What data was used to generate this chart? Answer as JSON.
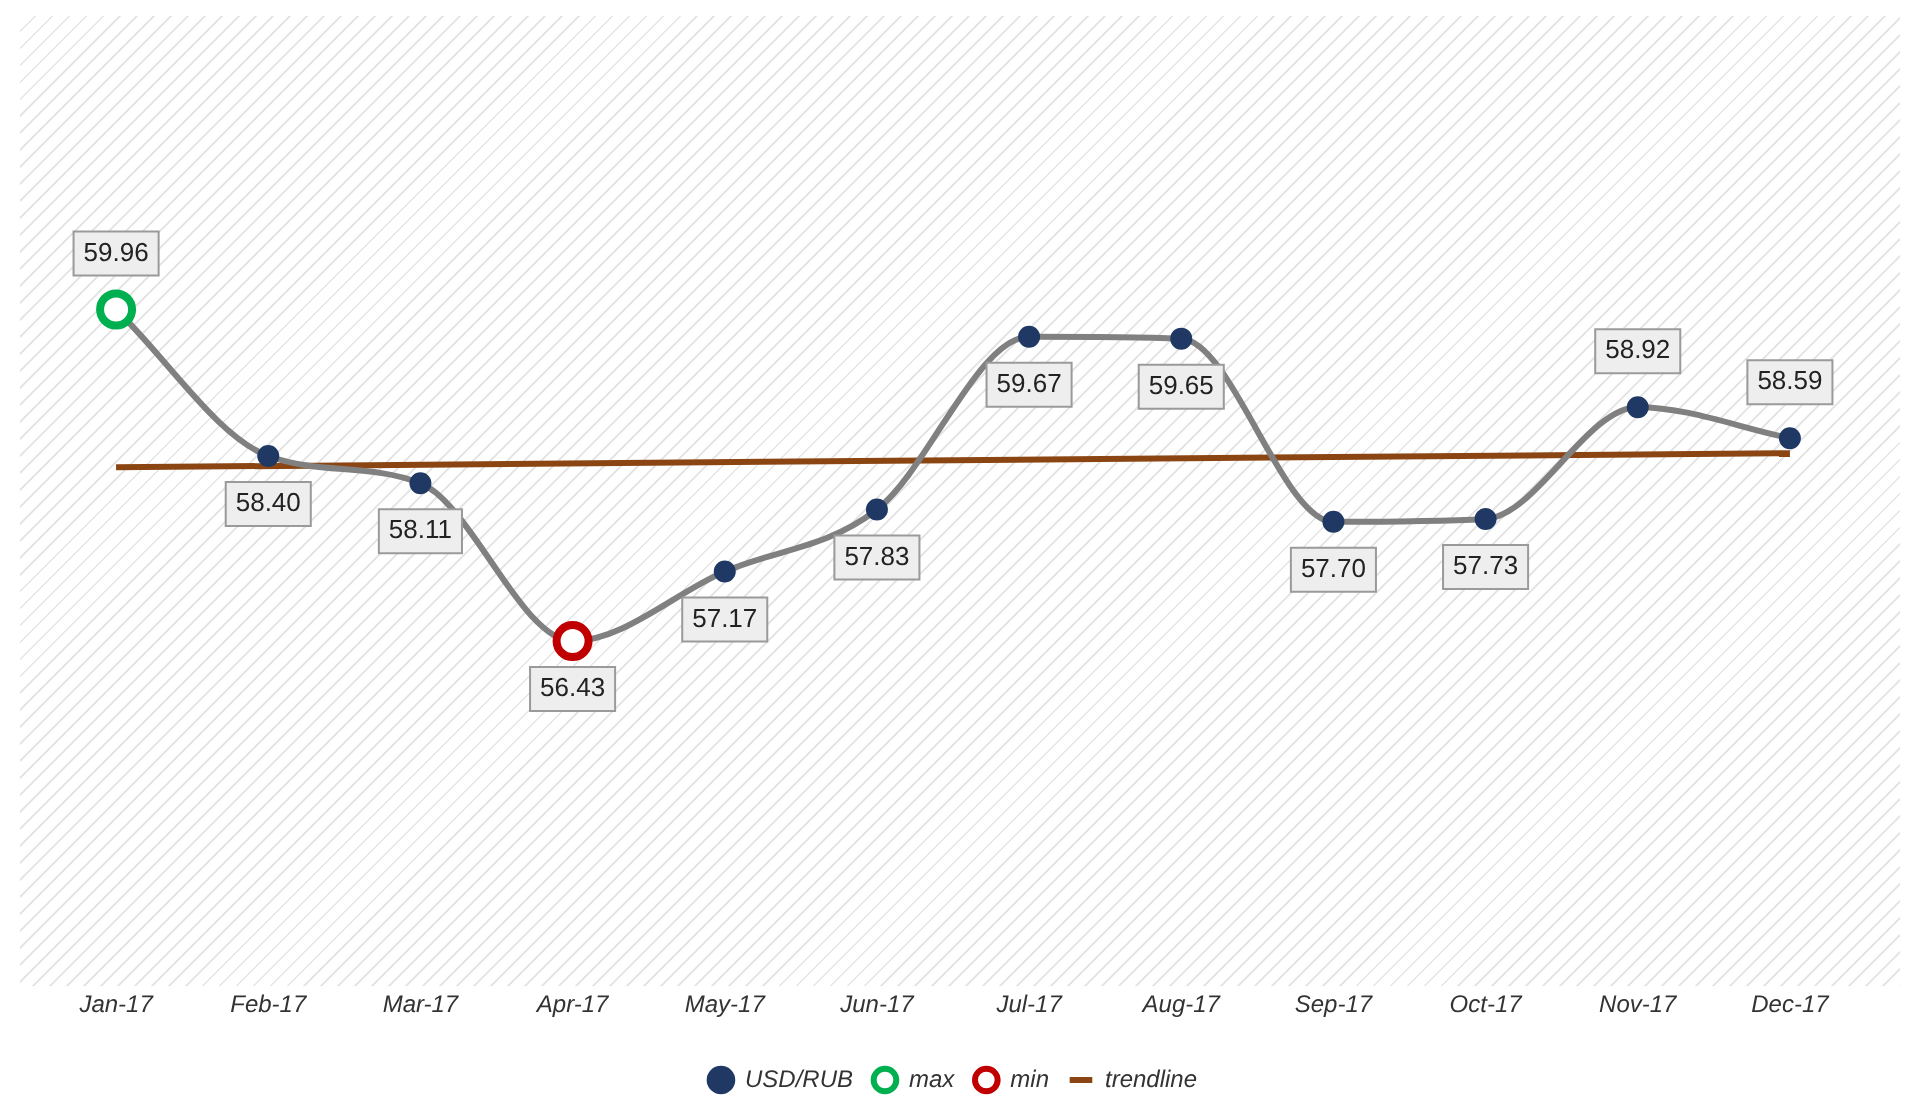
{
  "chart_data": {
    "type": "line",
    "categories": [
      "Jan-17",
      "Feb-17",
      "Mar-17",
      "Apr-17",
      "May-17",
      "Jun-17",
      "Jul-17",
      "Aug-17",
      "Sep-17",
      "Oct-17",
      "Nov-17",
      "Dec-17"
    ],
    "series": [
      {
        "name": "USD/RUB",
        "color": "#808080",
        "colors": [
          "#1f3864",
          "#1f3864",
          "#1f3864",
          "#1f3864",
          "#1f3864",
          "#1f3864",
          "#1f3864",
          "#1f3864",
          "#1f3864",
          "#1f3864",
          "#1f3864",
          "#1f3864"
        ],
        "values": [
          59.96,
          58.4,
          58.11,
          56.43,
          57.17,
          57.83,
          59.67,
          59.65,
          57.7,
          57.73,
          58.92,
          58.59
        ],
        "value_labels": [
          "59.96",
          "58.40",
          "58.11",
          "56.43",
          "57.17",
          "57.83",
          "59.67",
          "59.65",
          "57.70",
          "57.73",
          "58.92",
          "58.59"
        ]
      },
      {
        "name": "max",
        "type": "scatter",
        "color": "#00b050",
        "x": [
          "Jan-17"
        ],
        "values": [
          59.96
        ]
      },
      {
        "name": "min",
        "type": "scatter",
        "color": "#c00000",
        "x": [
          "Apr-17"
        ],
        "values": [
          56.43
        ]
      },
      {
        "name": "trendline",
        "type": "line",
        "marker": "none",
        "color": "#8b4513",
        "x": [
          "Jan-17",
          "Dec-17"
        ],
        "values": [
          58.28,
          58.43
        ]
      }
    ],
    "legend": "bottom",
    "marker": "circle"
  }
}
